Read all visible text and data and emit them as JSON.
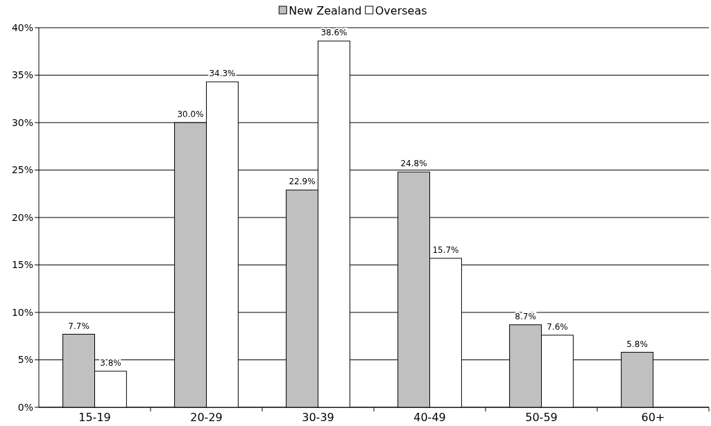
{
  "chart_data": {
    "type": "bar",
    "categories": [
      "15-19",
      "20-29",
      "30-39",
      "40-49",
      "50-59",
      "60+"
    ],
    "series": [
      {
        "name": "New Zealand",
        "color": "#c0c0c0",
        "values": [
          7.7,
          30.0,
          22.9,
          24.8,
          8.7,
          5.8
        ],
        "value_labels": [
          "7.7%",
          "30.0%",
          "22.9%",
          "24.8%",
          "8.7%",
          "5.8%"
        ]
      },
      {
        "name": "Overseas",
        "color": "#ffffff",
        "values": [
          3.8,
          34.3,
          38.6,
          15.7,
          7.6,
          null
        ],
        "value_labels": [
          "3.8%",
          "34.3%",
          "38.6%",
          "15.7%",
          "7.6%",
          null
        ]
      }
    ],
    "ylim": [
      0,
      40
    ],
    "yticks": [
      {
        "value": 0,
        "label": "0%"
      },
      {
        "value": 5,
        "label": "5%"
      },
      {
        "value": 10,
        "label": "10%"
      },
      {
        "value": 15,
        "label": "15%"
      },
      {
        "value": 20,
        "label": "20%"
      },
      {
        "value": 25,
        "label": "25%"
      },
      {
        "value": 30,
        "label": "30%"
      },
      {
        "value": 35,
        "label": "35%"
      },
      {
        "value": 40,
        "label": "40%"
      }
    ],
    "grid": "y",
    "legend": "top"
  }
}
